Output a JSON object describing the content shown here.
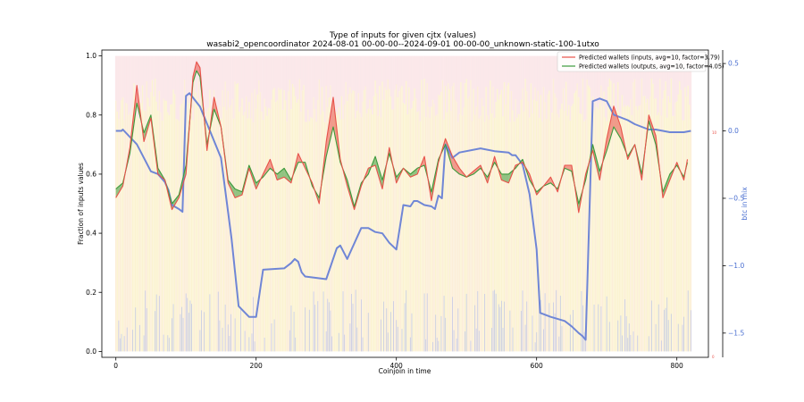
{
  "chart_data": {
    "type": "line",
    "title": "Type of inputs for given cjtx (values)",
    "subtitle": "wasabi2_opencoordinator 2024-08-01 00-00-00--2024-09-01 00-00-00_unknown-static-100-1utxo",
    "xlabel": "Coinjoin in time",
    "ylabel": "Fraction of inputs values",
    "y2label": "btc in mix",
    "xlim": [
      -20,
      845
    ],
    "ylim": [
      -0.02,
      1.02
    ],
    "y2lim": [
      -1.68,
      0.6
    ],
    "x_ticks": [
      0,
      200,
      400,
      600,
      800
    ],
    "x_tick_labels": [
      "0",
      "200",
      "400",
      "600",
      "800"
    ],
    "y_ticks": [
      0.0,
      0.2,
      0.4,
      0.6,
      0.8,
      1.0
    ],
    "y_tick_labels": [
      "0.0",
      "0.2",
      "0.4",
      "0.6",
      "0.8",
      "1.0"
    ],
    "y2_ticks": [
      0.5,
      0.0,
      -0.5,
      -1.0,
      -1.5
    ],
    "y2_tick_labels": [
      "0.5",
      "0.0",
      "−0.5",
      "−1.0",
      "−1.5"
    ],
    "tiny_right_labels": [
      "10",
      "0"
    ],
    "legend_position": "top-right",
    "grid": false,
    "colors": {
      "inputs": "#e8524a",
      "outputs": "#3c9a3c",
      "btc": "#6f86d6",
      "bg_pink": "#f7cdd0",
      "bg_orange": "#f8d9a8",
      "bg_yellow": "#f6e49a",
      "bg_blue": "#aab8ee"
    },
    "series": [
      {
        "name": "Predicted wallets (inputs, avg=10, factor=3.79)",
        "x": [
          0,
          10,
          20,
          30,
          40,
          50,
          60,
          70,
          80,
          90,
          100,
          110,
          115,
          120,
          130,
          140,
          150,
          160,
          170,
          180,
          190,
          200,
          210,
          220,
          230,
          240,
          250,
          260,
          270,
          280,
          290,
          300,
          310,
          320,
          330,
          340,
          350,
          360,
          370,
          380,
          390,
          400,
          410,
          420,
          430,
          440,
          450,
          460,
          470,
          480,
          490,
          500,
          510,
          520,
          530,
          540,
          550,
          560,
          570,
          580,
          590,
          600,
          610,
          620,
          630,
          640,
          650,
          660,
          670,
          680,
          690,
          700,
          710,
          720,
          730,
          740,
          750,
          760,
          770,
          780,
          790,
          800,
          810,
          815
        ],
        "y": [
          0.52,
          0.56,
          0.69,
          0.9,
          0.71,
          0.79,
          0.6,
          0.58,
          0.48,
          0.52,
          0.6,
          0.93,
          0.98,
          0.96,
          0.68,
          0.86,
          0.76,
          0.57,
          0.52,
          0.53,
          0.62,
          0.55,
          0.6,
          0.65,
          0.58,
          0.59,
          0.57,
          0.67,
          0.62,
          0.57,
          0.5,
          0.71,
          0.86,
          0.65,
          0.56,
          0.48,
          0.56,
          0.62,
          0.63,
          0.55,
          0.69,
          0.57,
          0.62,
          0.59,
          0.6,
          0.66,
          0.51,
          0.64,
          0.72,
          0.66,
          0.62,
          0.59,
          0.61,
          0.63,
          0.57,
          0.66,
          0.58,
          0.57,
          0.63,
          0.64,
          0.6,
          0.53,
          0.56,
          0.59,
          0.54,
          0.63,
          0.63,
          0.47,
          0.6,
          0.68,
          0.58,
          0.72,
          0.83,
          0.76,
          0.65,
          0.7,
          0.58,
          0.8,
          0.73,
          0.52,
          0.58,
          0.64,
          0.58,
          0.65
        ]
      },
      {
        "name": "Predicted wallets (outputs, avg=10, factor=4.05)",
        "x": [
          0,
          10,
          20,
          30,
          40,
          50,
          60,
          70,
          80,
          90,
          100,
          110,
          115,
          120,
          130,
          140,
          150,
          160,
          170,
          180,
          190,
          200,
          210,
          220,
          230,
          240,
          250,
          260,
          270,
          280,
          290,
          300,
          310,
          320,
          330,
          340,
          350,
          360,
          370,
          380,
          390,
          400,
          410,
          420,
          430,
          440,
          450,
          460,
          470,
          480,
          490,
          500,
          510,
          520,
          530,
          540,
          550,
          560,
          570,
          580,
          590,
          600,
          610,
          620,
          630,
          640,
          650,
          660,
          670,
          680,
          690,
          700,
          710,
          720,
          730,
          740,
          750,
          760,
          770,
          780,
          790,
          800,
          810,
          815
        ],
        "y": [
          0.55,
          0.57,
          0.67,
          0.84,
          0.74,
          0.8,
          0.62,
          0.58,
          0.5,
          0.53,
          0.63,
          0.91,
          0.95,
          0.93,
          0.7,
          0.82,
          0.76,
          0.58,
          0.55,
          0.54,
          0.63,
          0.57,
          0.59,
          0.62,
          0.6,
          0.62,
          0.58,
          0.64,
          0.64,
          0.56,
          0.52,
          0.66,
          0.76,
          0.64,
          0.58,
          0.49,
          0.57,
          0.6,
          0.66,
          0.58,
          0.67,
          0.59,
          0.62,
          0.6,
          0.62,
          0.63,
          0.54,
          0.65,
          0.7,
          0.62,
          0.6,
          0.59,
          0.6,
          0.62,
          0.59,
          0.64,
          0.6,
          0.6,
          0.62,
          0.65,
          0.58,
          0.54,
          0.56,
          0.57,
          0.55,
          0.62,
          0.61,
          0.5,
          0.58,
          0.7,
          0.61,
          0.68,
          0.76,
          0.72,
          0.66,
          0.7,
          0.6,
          0.78,
          0.7,
          0.54,
          0.6,
          0.63,
          0.59,
          0.64
        ]
      },
      {
        "name": "btc in mix",
        "x": [
          0,
          8,
          10,
          30,
          50,
          60,
          70,
          75,
          80,
          90,
          95,
          100,
          105,
          120,
          150,
          165,
          175,
          190,
          195,
          200,
          210,
          240,
          250,
          255,
          260,
          265,
          270,
          300,
          315,
          320,
          330,
          350,
          360,
          370,
          380,
          390,
          400,
          410,
          420,
          425,
          430,
          440,
          450,
          455,
          460,
          465,
          470,
          480,
          490,
          520,
          540,
          560,
          565,
          570,
          580,
          590,
          600,
          605,
          610,
          620,
          640,
          650,
          660,
          665,
          670,
          680,
          690,
          700,
          710,
          730,
          740,
          750,
          760,
          770,
          780,
          790,
          800,
          810,
          820
        ],
        "y": [
          0.0,
          0.0,
          0.01,
          -0.1,
          -0.3,
          -0.32,
          -0.38,
          -0.44,
          -0.55,
          -0.58,
          -0.6,
          0.26,
          0.28,
          0.18,
          -0.2,
          -0.8,
          -1.3,
          -1.38,
          -1.38,
          -1.38,
          -1.03,
          -1.02,
          -0.98,
          -0.95,
          -0.97,
          -1.05,
          -1.08,
          -1.1,
          -0.87,
          -0.85,
          -0.95,
          -0.72,
          -0.72,
          -0.75,
          -0.76,
          -0.83,
          -0.88,
          -0.55,
          -0.56,
          -0.52,
          -0.52,
          -0.55,
          -0.56,
          -0.58,
          -0.48,
          -0.5,
          -0.1,
          -0.2,
          -0.16,
          -0.13,
          -0.15,
          -0.16,
          -0.18,
          -0.18,
          -0.25,
          -0.47,
          -0.88,
          -1.35,
          -1.36,
          -1.38,
          -1.41,
          -1.45,
          -1.5,
          -1.52,
          -1.55,
          0.22,
          0.24,
          0.22,
          0.12,
          0.08,
          0.05,
          0.03,
          0.01,
          0.01,
          0.0,
          -0.01,
          -0.01,
          -0.01,
          0.0
        ]
      }
    ]
  }
}
